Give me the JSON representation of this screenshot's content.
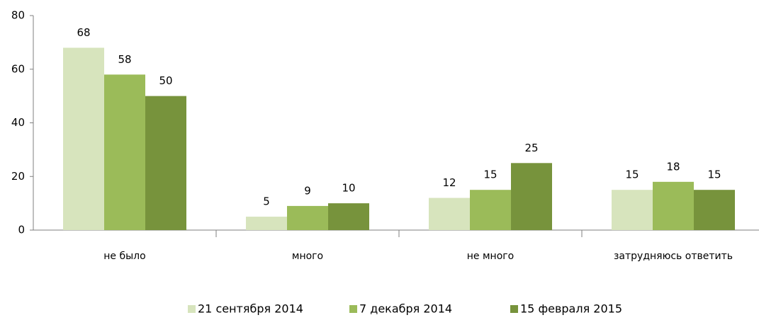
{
  "chart_data": {
    "type": "bar",
    "categories": [
      "не было",
      "много",
      "не много",
      "затрудняюсь ответить"
    ],
    "series": [
      {
        "name": "21 сентября 2014",
        "color": "#d7e4bd",
        "values": [
          68,
          5,
          12,
          15
        ]
      },
      {
        "name": "7 декабря 2014",
        "color": "#9bbb59",
        "values": [
          58,
          9,
          15,
          18
        ]
      },
      {
        "name": "15 февраля 2015",
        "color": "#77933c",
        "values": [
          50,
          10,
          25,
          15
        ]
      }
    ],
    "ylim": [
      0,
      80
    ],
    "yticks": [
      0,
      20,
      40,
      60,
      80
    ],
    "grid": false,
    "legend": "bottom"
  }
}
